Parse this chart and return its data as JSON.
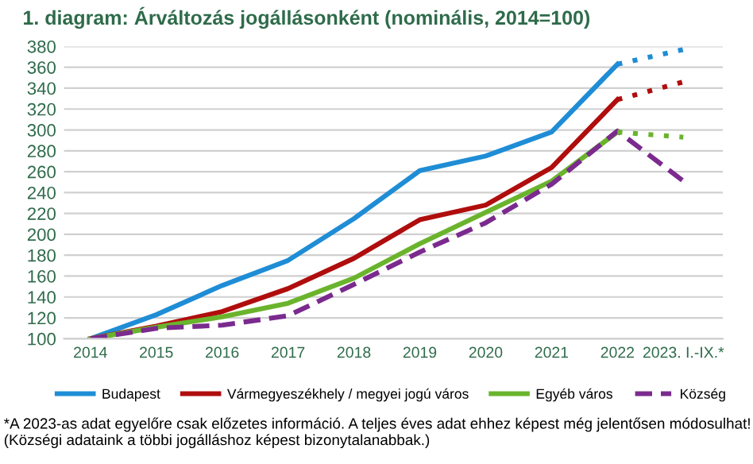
{
  "chart_data": {
    "type": "line",
    "title": "1. diagram: Árváltozás jogállásonként (nominális, 2014=100)",
    "categories": [
      "2014",
      "2015",
      "2016",
      "2017",
      "2018",
      "2019",
      "2020",
      "2021",
      "2022",
      "2023. I.-IX.*"
    ],
    "series": [
      {
        "name": "Budapest",
        "color": "#1f8dd6",
        "line_style": "solid",
        "values": [
          100,
          123,
          151,
          175,
          215,
          261,
          275,
          298,
          363,
          null
        ]
      },
      {
        "name": "Vármegyeszékhely / megyei jogú város",
        "color": "#b00d0d",
        "line_style": "solid",
        "values": [
          100,
          112,
          126,
          148,
          177,
          214,
          228,
          264,
          329,
          null
        ]
      },
      {
        "name": "Egyéb város",
        "color": "#6ab42d",
        "line_style": "solid",
        "values": [
          100,
          111,
          121,
          134,
          158,
          191,
          221,
          251,
          298,
          null
        ]
      },
      {
        "name": "Község",
        "color": "#7b2a8e",
        "line_style": "dashed",
        "values": [
          100,
          110,
          113,
          122,
          152,
          183,
          211,
          248,
          299,
          251
        ]
      },
      {
        "color": "#1f8dd6",
        "line_style": "dotted",
        "values": [
          null,
          null,
          null,
          null,
          null,
          null,
          null,
          null,
          363,
          377
        ]
      },
      {
        "color": "#b00d0d",
        "line_style": "dotted",
        "values": [
          null,
          null,
          null,
          null,
          null,
          null,
          null,
          null,
          329,
          346
        ]
      },
      {
        "color": "#6ab42d",
        "line_style": "dotted",
        "values": [
          null,
          null,
          null,
          null,
          null,
          null,
          null,
          null,
          298,
          293
        ]
      }
    ],
    "ylim": [
      100,
      380
    ],
    "yticks": [
      100,
      120,
      140,
      160,
      180,
      200,
      220,
      240,
      260,
      280,
      300,
      320,
      340,
      360,
      380
    ],
    "grid": "y",
    "legend": "bottom",
    "marker": "none",
    "annotations": [
      "*A 2023-as adat egyelőre csak előzetes információ. A teljes éves adat ehhez képest még jelentősen módosulhat! (Községi adataink a többi jogálláshoz képest bizonytalanabbak.)"
    ]
  }
}
